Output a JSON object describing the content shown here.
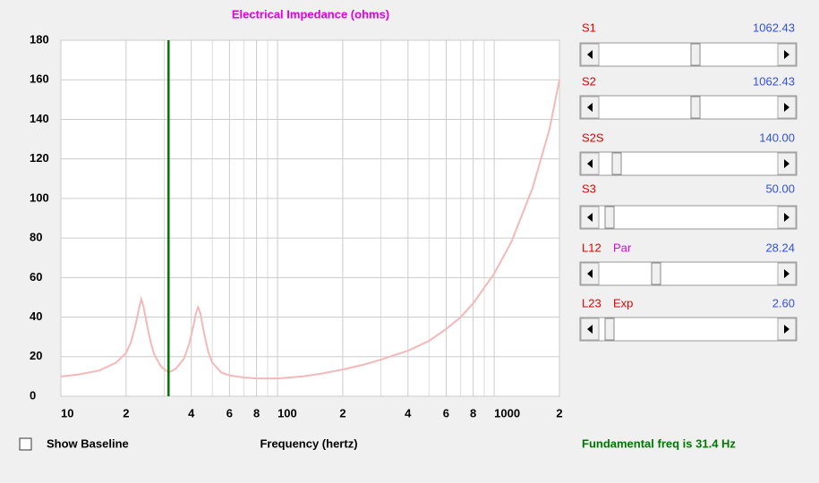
{
  "chart_data": {
    "type": "line",
    "title": "Electrical Impedance (ohms)",
    "x_label": "Frequency (hertz)",
    "log_x": true,
    "grid": true,
    "xlim": [
      10,
      2000
    ],
    "xticks": [
      10,
      {
        "value": 20,
        "label": "2"
      },
      {
        "value": 40,
        "label": "4"
      },
      {
        "value": 60,
        "label": "6"
      },
      {
        "value": 80,
        "label": "8"
      },
      100,
      {
        "value": 200,
        "label": "2"
      },
      {
        "value": 400,
        "label": "4"
      },
      {
        "value": 600,
        "label": "6"
      },
      {
        "value": 800,
        "label": "8"
      },
      1000,
      {
        "value": 2000,
        "label": "2"
      }
    ],
    "ylim": [
      0,
      180
    ],
    "yticks": [
      0,
      20,
      40,
      60,
      80,
      100,
      120,
      140,
      160,
      180
    ],
    "x": [
      10,
      12,
      15,
      18,
      20,
      21,
      22,
      23,
      23.5,
      24,
      25,
      26,
      27,
      29,
      31.4,
      34,
      37,
      39,
      41,
      42,
      43,
      44,
      46,
      48,
      50,
      55,
      60,
      70,
      80,
      100,
      130,
      160,
      200,
      250,
      300,
      400,
      500,
      600,
      700,
      800,
      1000,
      1200,
      1500,
      1800,
      2000
    ],
    "series": [
      {
        "name": "Impedance",
        "color": "#f4b8b8",
        "values": [
          10,
          11,
          13,
          17,
          22,
          27,
          35,
          45,
          49,
          46,
          36,
          27,
          21,
          15,
          12,
          14,
          19,
          26,
          36,
          42,
          45,
          42,
          31,
          22,
          17,
          12,
          10.5,
          9.5,
          9,
          9,
          10,
          11.5,
          13.5,
          16,
          18.5,
          23,
          28,
          34,
          40,
          47,
          62,
          78,
          105,
          135,
          160
        ]
      }
    ],
    "vline": {
      "value": 31.4,
      "color": "#007800"
    },
    "status": "Fundamental freq is 31.4 Hz"
  },
  "controls": [
    {
      "name": "S1",
      "value": "1062.43"
    },
    {
      "name": "S2",
      "value": "1062.43"
    },
    {
      "name": "S2S",
      "value": "140.00"
    },
    {
      "name": "S3",
      "value": "50.00"
    },
    {
      "name": "L12",
      "mode": "Par",
      "value": "28.24"
    },
    {
      "name": "L23",
      "mode": "Exp",
      "value": "2.60"
    }
  ],
  "checkbox": {
    "label": "Show Baseline",
    "checked": false
  }
}
